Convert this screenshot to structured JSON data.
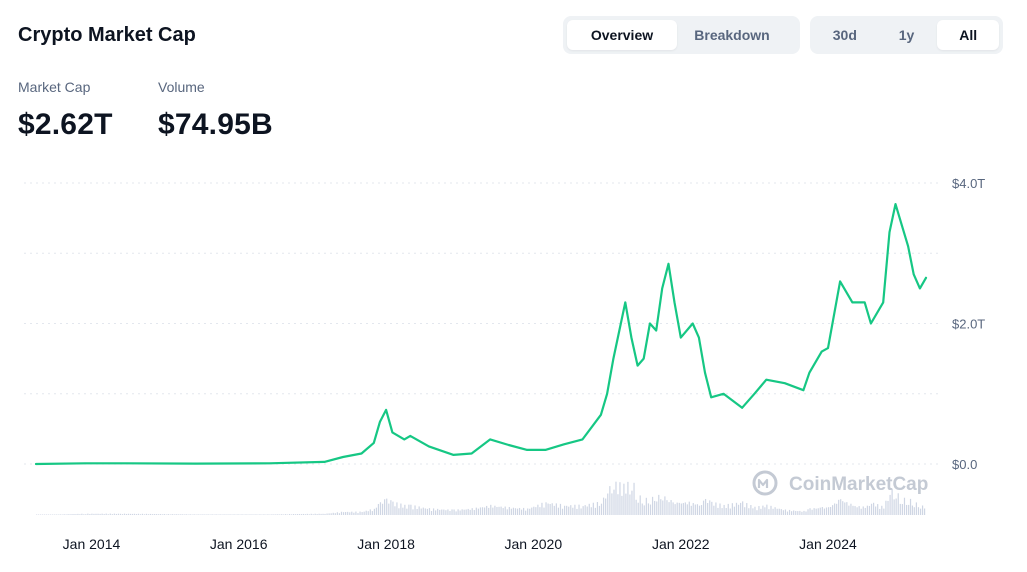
{
  "header": {
    "title": "Crypto Market Cap"
  },
  "view_tabs": [
    {
      "label": "Overview",
      "active": true
    },
    {
      "label": "Breakdown",
      "active": false
    }
  ],
  "range_tabs": [
    {
      "label": "30d",
      "active": false
    },
    {
      "label": "1y",
      "active": false
    },
    {
      "label": "All",
      "active": true
    }
  ],
  "stats": [
    {
      "label": "Market Cap",
      "value": "$2.62T"
    },
    {
      "label": "Volume",
      "value": "$74.95B"
    }
  ],
  "watermark": "CoinMarketCap",
  "colors": {
    "line": "#16c784",
    "volume": "#cfd6e4",
    "grid": "#e3e7ee",
    "muted": "#58667e"
  },
  "chart_data": {
    "type": "line",
    "y_unit": "trillion USD",
    "ylim": [
      0,
      4.0
    ],
    "y_ticks": [
      {
        "value": 0,
        "label": "$0.0"
      },
      {
        "value": 2.0,
        "label": "$2.0T"
      },
      {
        "value": 4.0,
        "label": "$4.0T"
      }
    ],
    "x_ticks": [
      {
        "value": "2014-01",
        "label": "Jan 2014"
      },
      {
        "value": "2016-01",
        "label": "Jan 2016"
      },
      {
        "value": "2018-01",
        "label": "Jan 2018"
      },
      {
        "value": "2020-01",
        "label": "Jan 2020"
      },
      {
        "value": "2022-01",
        "label": "Jan 2022"
      },
      {
        "value": "2024-01",
        "label": "Jan 2024"
      }
    ],
    "grid": true,
    "series": [
      {
        "x": [
          "2013-04",
          "2013-12",
          "2014-06",
          "2015-06",
          "2016-06",
          "2017-03",
          "2017-06",
          "2017-09",
          "2017-11",
          "2017-12",
          "2018-01",
          "2018-02",
          "2018-04",
          "2018-05",
          "2018-08",
          "2018-12",
          "2019-03",
          "2019-06",
          "2019-09",
          "2019-12",
          "2020-03",
          "2020-06",
          "2020-09",
          "2020-12",
          "2021-01",
          "2021-02",
          "2021-04",
          "2021-05",
          "2021-06",
          "2021-07",
          "2021-08",
          "2021-09",
          "2021-10",
          "2021-11",
          "2021-12",
          "2022-01",
          "2022-03",
          "2022-04",
          "2022-05",
          "2022-06",
          "2022-08",
          "2022-11",
          "2023-01",
          "2023-03",
          "2023-06",
          "2023-09",
          "2023-10",
          "2023-12",
          "2024-01",
          "2024-03",
          "2024-05",
          "2024-07",
          "2024-08",
          "2024-10",
          "2024-11",
          "2024-12",
          "2025-01",
          "2025-02",
          "2025-03",
          "2025-04",
          "2025-05"
        ],
        "values": [
          0.0,
          0.01,
          0.01,
          0.005,
          0.01,
          0.03,
          0.1,
          0.15,
          0.3,
          0.6,
          0.77,
          0.45,
          0.35,
          0.4,
          0.25,
          0.13,
          0.15,
          0.35,
          0.27,
          0.2,
          0.2,
          0.28,
          0.35,
          0.7,
          1.0,
          1.5,
          2.3,
          1.8,
          1.4,
          1.5,
          2.0,
          1.9,
          2.5,
          2.85,
          2.3,
          1.8,
          2.0,
          1.8,
          1.3,
          0.95,
          1.0,
          0.8,
          1.0,
          1.2,
          1.15,
          1.05,
          1.3,
          1.6,
          1.65,
          2.6,
          2.3,
          2.3,
          2.0,
          2.3,
          3.3,
          3.7,
          3.4,
          3.1,
          2.7,
          2.5,
          2.65
        ],
        "volume": [
          0.0,
          0.02,
          0.02,
          0.01,
          0.01,
          0.02,
          0.05,
          0.05,
          0.1,
          0.2,
          0.25,
          0.2,
          0.15,
          0.15,
          0.1,
          0.08,
          0.1,
          0.15,
          0.12,
          0.1,
          0.2,
          0.15,
          0.15,
          0.2,
          0.4,
          0.5,
          0.45,
          0.55,
          0.3,
          0.25,
          0.25,
          0.3,
          0.3,
          0.25,
          0.2,
          0.2,
          0.2,
          0.15,
          0.25,
          0.2,
          0.15,
          0.2,
          0.12,
          0.15,
          0.08,
          0.06,
          0.1,
          0.12,
          0.12,
          0.25,
          0.15,
          0.12,
          0.2,
          0.12,
          0.4,
          0.35,
          0.25,
          0.25,
          0.2,
          0.15,
          0.12
        ]
      }
    ]
  }
}
